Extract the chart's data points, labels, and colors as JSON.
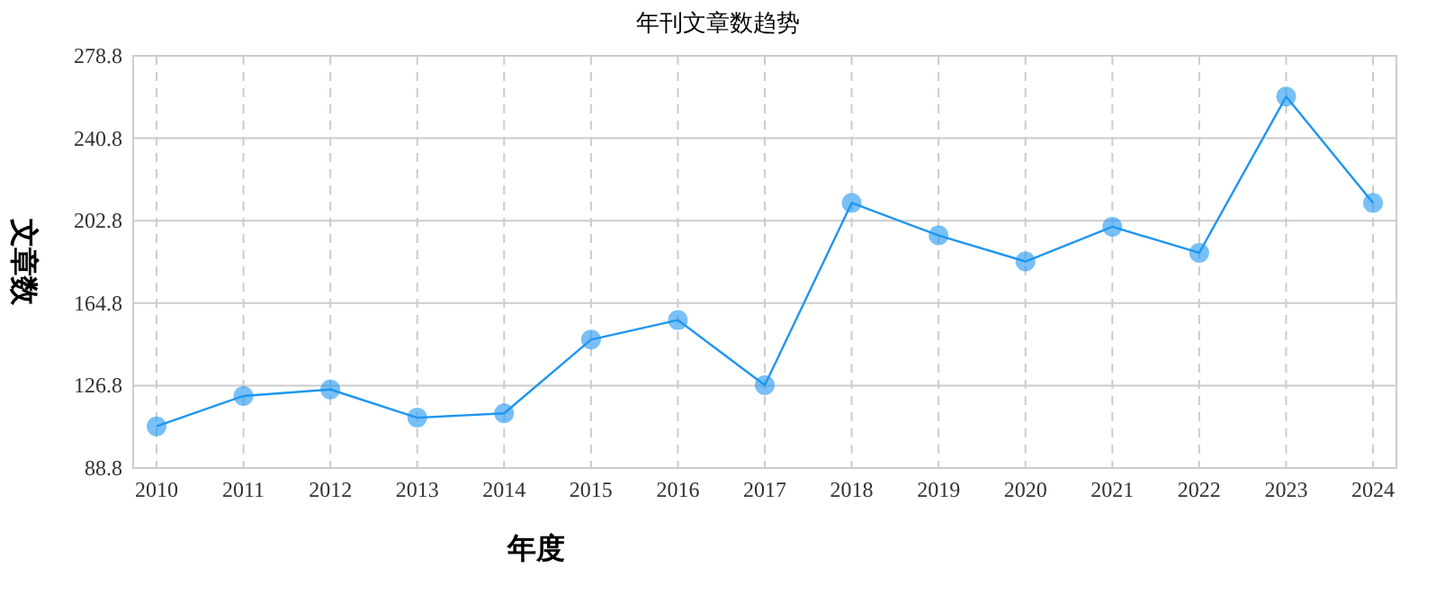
{
  "chart_data": {
    "type": "line",
    "title": "年刊文章数趋势",
    "xlabel": "年度",
    "ylabel": "文章数",
    "categories": [
      "2010",
      "2011",
      "2012",
      "2013",
      "2014",
      "2015",
      "2016",
      "2017",
      "2018",
      "2019",
      "2020",
      "2021",
      "2022",
      "2023",
      "2024"
    ],
    "series": [
      {
        "color": "#1e96f0",
        "values": [
          108,
          122,
          125,
          112,
          114,
          148,
          157,
          127,
          211,
          196,
          184,
          200,
          188,
          260,
          211
        ]
      }
    ],
    "ylim": [
      88.8,
      278.8
    ],
    "yticks": [
      88.8,
      126.8,
      164.8,
      202.8,
      240.8,
      278.8
    ],
    "grid": true,
    "marker": "circle",
    "line_style": "solid"
  }
}
